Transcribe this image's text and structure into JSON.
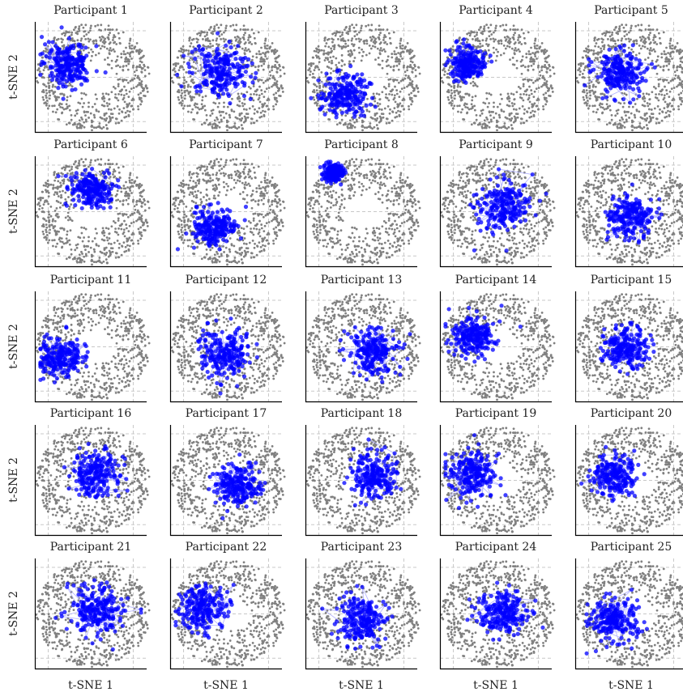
{
  "chart_data": {
    "type": "scatter",
    "layout": "5x5 small multiples",
    "xlabel": "t-SNE 1",
    "ylabel": "t-SNE 2",
    "grid": true,
    "grid_style": "dashed",
    "background_points_color": "#808080",
    "participant_points_color": "#0000ff",
    "trajectory_color": "#aaaaff",
    "panels": [
      {
        "title": "Participant 1",
        "blue_cluster": [
          0.3,
          0.62
        ],
        "spread": 0.3
      },
      {
        "title": "Participant 2",
        "blue_cluster": [
          0.45,
          0.55
        ],
        "spread": 0.38
      },
      {
        "title": "Participant 3",
        "blue_cluster": [
          0.35,
          0.35
        ],
        "spread": 0.3
      },
      {
        "title": "Participant 4",
        "blue_cluster": [
          0.25,
          0.62
        ],
        "spread": 0.22
      },
      {
        "title": "Participant 5",
        "blue_cluster": [
          0.4,
          0.55
        ],
        "spread": 0.3
      },
      {
        "title": "Participant 6",
        "blue_cluster": [
          0.5,
          0.7
        ],
        "spread": 0.25
      },
      {
        "title": "Participant 7",
        "blue_cluster": [
          0.4,
          0.35
        ],
        "spread": 0.28
      },
      {
        "title": "Participant 8",
        "blue_cluster": [
          0.25,
          0.85
        ],
        "spread": 0.12
      },
      {
        "title": "Participant 9",
        "blue_cluster": [
          0.55,
          0.55
        ],
        "spread": 0.35
      },
      {
        "title": "Participant 10",
        "blue_cluster": [
          0.5,
          0.45
        ],
        "spread": 0.3
      },
      {
        "title": "Participant 11",
        "blue_cluster": [
          0.22,
          0.4
        ],
        "spread": 0.28
      },
      {
        "title": "Participant 12",
        "blue_cluster": [
          0.5,
          0.45
        ],
        "spread": 0.35
      },
      {
        "title": "Participant 13",
        "blue_cluster": [
          0.6,
          0.45
        ],
        "spread": 0.3
      },
      {
        "title": "Participant 14",
        "blue_cluster": [
          0.3,
          0.6
        ],
        "spread": 0.28
      },
      {
        "title": "Participant 15",
        "blue_cluster": [
          0.45,
          0.5
        ],
        "spread": 0.28
      },
      {
        "title": "Participant 16",
        "blue_cluster": [
          0.55,
          0.55
        ],
        "spread": 0.32
      },
      {
        "title": "Participant 17",
        "blue_cluster": [
          0.6,
          0.45
        ],
        "spread": 0.3
      },
      {
        "title": "Participant 18",
        "blue_cluster": [
          0.6,
          0.55
        ],
        "spread": 0.3
      },
      {
        "title": "Participant 19",
        "blue_cluster": [
          0.3,
          0.55
        ],
        "spread": 0.33
      },
      {
        "title": "Participant 20",
        "blue_cluster": [
          0.35,
          0.55
        ],
        "spread": 0.28
      },
      {
        "title": "Participant 21",
        "blue_cluster": [
          0.55,
          0.55
        ],
        "spread": 0.35
      },
      {
        "title": "Participant 22",
        "blue_cluster": [
          0.3,
          0.55
        ],
        "spread": 0.32
      },
      {
        "title": "Participant 23",
        "blue_cluster": [
          0.5,
          0.45
        ],
        "spread": 0.32
      },
      {
        "title": "Participant 24",
        "blue_cluster": [
          0.55,
          0.5
        ],
        "spread": 0.32
      },
      {
        "title": "Participant 25",
        "blue_cluster": [
          0.35,
          0.45
        ],
        "spread": 0.3
      }
    ]
  }
}
